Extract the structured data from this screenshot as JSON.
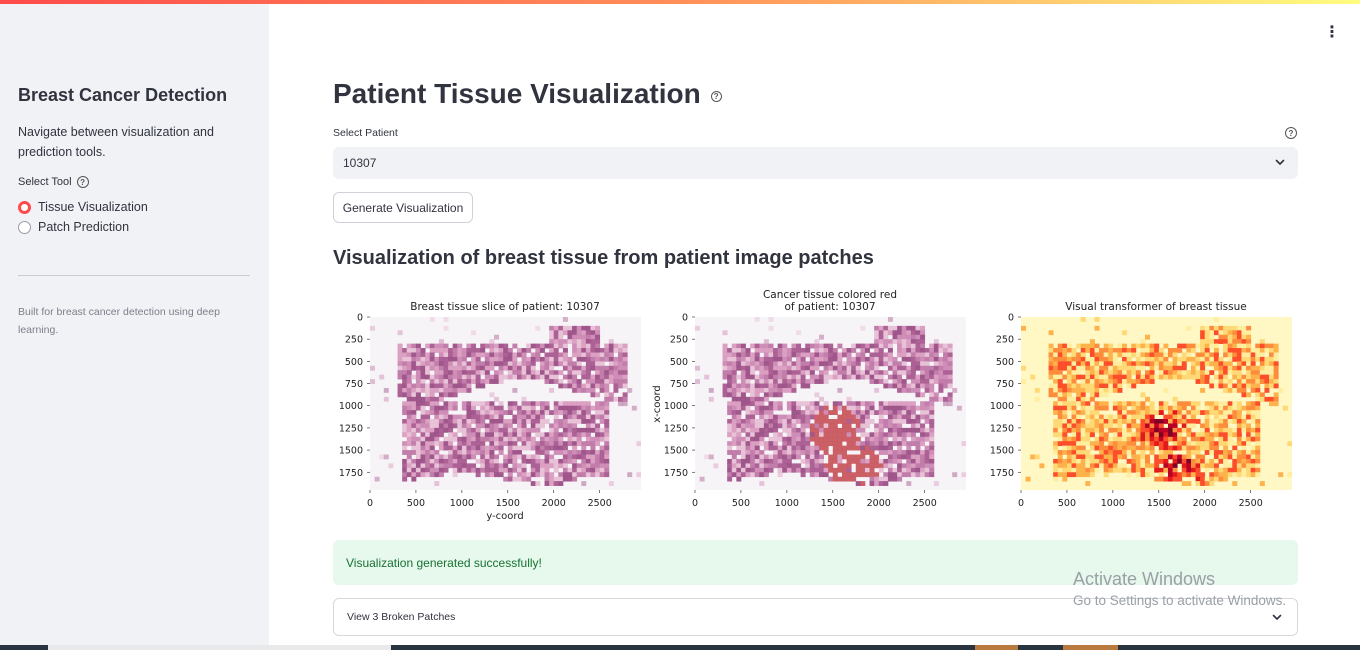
{
  "sidebar": {
    "title": "Breast Cancer Detection",
    "description": "Navigate between visualization and prediction tools.",
    "select_label": "Select Tool",
    "options": [
      {
        "label": "Tissue Visualization",
        "selected": true
      },
      {
        "label": "Patch Prediction",
        "selected": false
      }
    ],
    "footer": "Built for breast cancer detection using deep learning."
  },
  "main": {
    "title": "Patient Tissue Visualization",
    "patient_label": "Select Patient",
    "patient_value": "10307",
    "generate_button": "Generate Visualization",
    "subheader": "Visualization of breast tissue from patient image patches",
    "success_message": "Visualization generated successfully!",
    "expander_label": "View 3 Broken Patches"
  },
  "chart_data": [
    {
      "type": "heatmap",
      "title": "Breast tissue slice of patient: 10307",
      "xlabel": "y-coord",
      "ylabel": "",
      "xticks": [
        "0",
        "500",
        "1000",
        "1500",
        "2000",
        "2500"
      ],
      "yticks": [
        "0",
        "250",
        "500",
        "750",
        "1000",
        "1250",
        "1500",
        "1750"
      ],
      "xlim": [
        0,
        2950
      ],
      "ylim": [
        1950,
        0
      ]
    },
    {
      "type": "heatmap",
      "title": "Cancer tissue colored red\nof patient: 10307",
      "xlabel": "",
      "ylabel": "x-coord",
      "xticks": [
        "0",
        "500",
        "1000",
        "1500",
        "2000",
        "2500"
      ],
      "yticks": [
        "0",
        "250",
        "500",
        "750",
        "1000",
        "1250",
        "1500",
        "1750"
      ],
      "xlim": [
        0,
        2950
      ],
      "ylim": [
        1950,
        0
      ]
    },
    {
      "type": "heatmap",
      "title": "Visual transformer of breast tissue",
      "xlabel": "",
      "ylabel": "",
      "xticks": [
        "0",
        "500",
        "1000",
        "1500",
        "2000",
        "2500"
      ],
      "yticks": [
        "0",
        "250",
        "500",
        "750",
        "1000",
        "1250",
        "1500",
        "1750"
      ],
      "xlim": [
        0,
        2950
      ],
      "ylim": [
        1950,
        0
      ]
    }
  ],
  "watermark": {
    "line1": "Activate Windows",
    "line2": "Go to Settings to activate Windows."
  },
  "colors": {
    "accent": "#ff4b4b",
    "sidebar_bg": "#f0f2f6",
    "success_bg": "#e7f8ec",
    "success_text": "#177233"
  },
  "icons": {
    "menu": "kebab-menu-icon",
    "help": "question-circle-icon",
    "chevron": "chevron-down-icon"
  }
}
